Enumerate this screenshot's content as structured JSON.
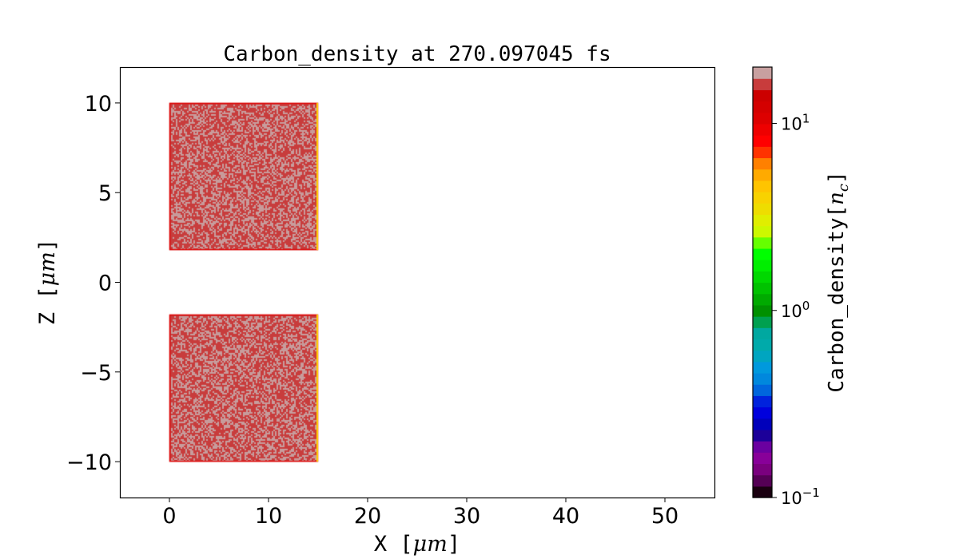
{
  "chart_data": {
    "type": "heatmap",
    "title": "Carbon_density at 270.097045 fs",
    "xlabel": "X  [$\\mu m$]",
    "xlabel_parts": {
      "plain": "X  [",
      "math": "μm",
      "close": "]"
    },
    "ylabel_parts": {
      "plain": "Z  [",
      "math": "μm",
      "close": "]"
    },
    "xlim": [
      -5,
      55
    ],
    "ylim": [
      -12,
      12
    ],
    "xticks": [
      0,
      10,
      20,
      30,
      40,
      50
    ],
    "xtick_labels": [
      "0",
      "10",
      "20",
      "30",
      "40",
      "50"
    ],
    "yticks": [
      -10,
      -5,
      0,
      5,
      10
    ],
    "ytick_labels": [
      "−10",
      "−5",
      "0",
      "5",
      "10"
    ],
    "regions": [
      {
        "x": [
          0,
          15
        ],
        "z": [
          1.8,
          10
        ],
        "value_range_nc": [
          10,
          20
        ]
      },
      {
        "x": [
          0,
          15
        ],
        "z": [
          -10,
          -1.8
        ],
        "value_range_nc": [
          10,
          20
        ]
      }
    ],
    "colorbar": {
      "label_parts": {
        "plain": "Carbon_density[",
        "math_base": "n",
        "math_sub": "c",
        "close": "]"
      },
      "scale": "log",
      "range": [
        0.1,
        20
      ],
      "colormap": "nipy_spectral (discrete)",
      "ticks": [
        0.1,
        1,
        10
      ],
      "tick_labels": [
        {
          "base": "10",
          "exp": "−1"
        },
        {
          "base": "10",
          "exp": "0"
        },
        {
          "base": "10",
          "exp": "1"
        }
      ]
    },
    "colors": {
      "high": "#c83c3c",
      "highest": "#c8a0a0",
      "edge": "#ffcc00"
    }
  }
}
